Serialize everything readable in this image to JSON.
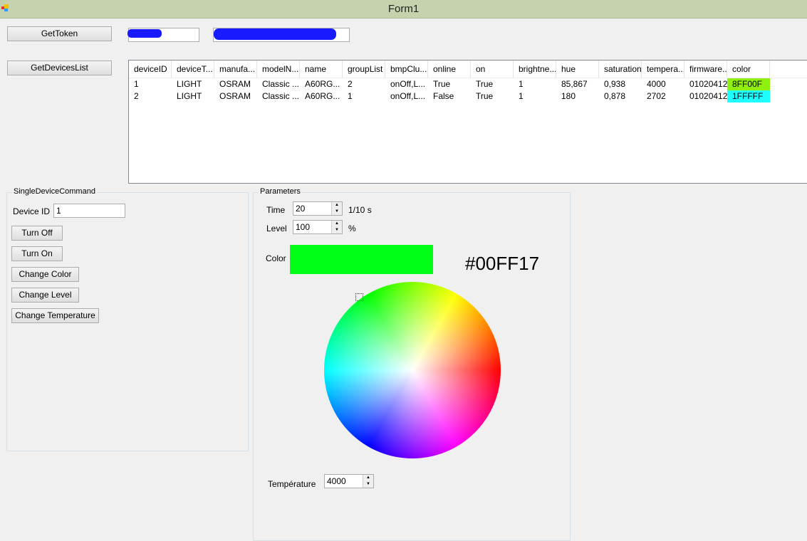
{
  "window": {
    "title": "Form1"
  },
  "buttons": {
    "get_token": "GetToken",
    "get_devices": "GetDevicesList"
  },
  "token_fields": {
    "field1": "",
    "field2": ""
  },
  "grid": {
    "columns": [
      "deviceID",
      "deviceT...",
      "manufa...",
      "modelN...",
      "name",
      "groupList",
      "bmpClu...",
      "online",
      "on",
      "brightne...",
      "hue",
      "saturation",
      "tempera...",
      "firmware...",
      "color"
    ],
    "rows": [
      [
        "1",
        "LIGHT",
        "OSRAM",
        "Classic ...",
        "A60RG...",
        "2",
        "onOff,L...",
        "True",
        "True",
        "1",
        "85,867",
        "0,938",
        "4000",
        "01020412",
        "8FF00F"
      ],
      [
        "2",
        "LIGHT",
        "OSRAM",
        "Classic ...",
        "A60RG...",
        "1",
        "onOff,L...",
        "False",
        "True",
        "1",
        "180",
        "0,878",
        "2702",
        "01020412",
        "1FFFFF"
      ]
    ],
    "color_cells": [
      "#8FF00F",
      "#1FFFFF"
    ]
  },
  "single": {
    "title": "SingleDeviceCommand",
    "device_id_label": "Device ID",
    "device_id_value": "1",
    "buttons": [
      "Turn Off",
      "Turn On",
      "Change Color",
      "Change Level",
      "Change Temperature"
    ]
  },
  "params": {
    "title": "Parameters",
    "time_label": "Time",
    "time_value": "20",
    "time_unit": "1/10 s",
    "level_label": "Level",
    "level_value": "100",
    "level_unit": "%",
    "color_label": "Color",
    "color_hex": "#00FF17",
    "color_swatch": "#00FF17",
    "temp_label": "Température",
    "temp_value": "4000"
  }
}
